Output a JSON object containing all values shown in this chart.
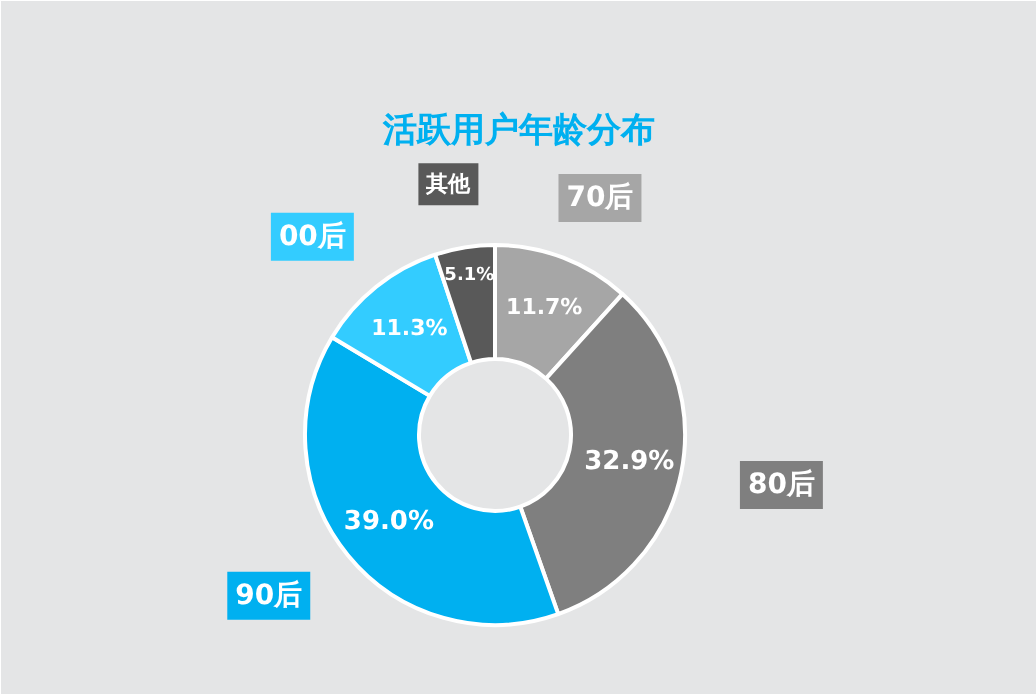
{
  "chart_data": {
    "type": "donut",
    "title": "活跃用户年龄分布",
    "categories": [
      "70后",
      "80后",
      "90后",
      "00后",
      "其他"
    ],
    "values": [
      11.7,
      32.9,
      39.0,
      11.3,
      5.1
    ],
    "colors": [
      "#a6a6a6",
      "#7f7f7f",
      "#00b0f0",
      "#33ccff",
      "#595959"
    ],
    "value_labels": [
      "11.7%",
      "32.9%",
      "39.0%",
      "11.3%",
      "5.1%"
    ]
  }
}
